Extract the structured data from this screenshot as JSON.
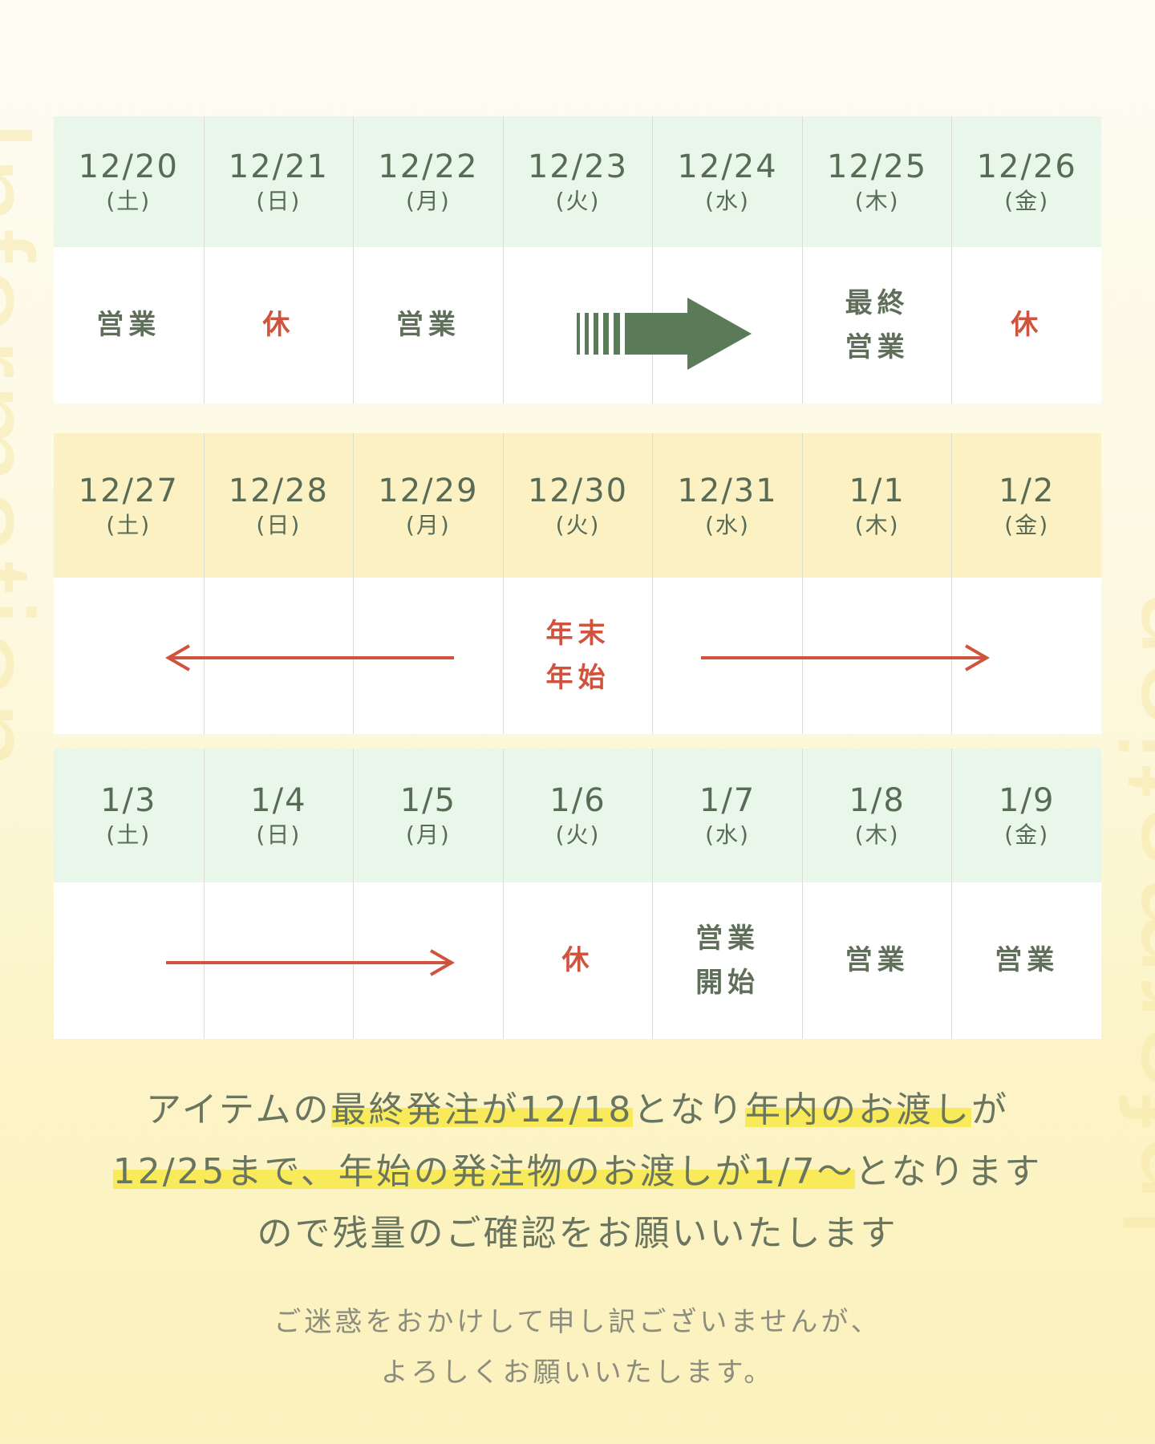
{
  "watermark": "Information",
  "colors": {
    "green_header": "#e9f7ea",
    "yellow_header": "#fcf1c2",
    "text": "#5f6f5a",
    "closed": "#d0533e",
    "arrow_green": "#5b7a58"
  },
  "weeks": [
    {
      "days": [
        {
          "date": "12/20",
          "dow": "(土)",
          "status": "営業"
        },
        {
          "date": "12/21",
          "dow": "(日)",
          "status": "休",
          "closed": true
        },
        {
          "date": "12/22",
          "dow": "(月)",
          "status": "営業"
        },
        {
          "date": "12/23",
          "dow": "(火)",
          "status": ""
        },
        {
          "date": "12/24",
          "dow": "(水)",
          "status": ""
        },
        {
          "date": "12/25",
          "dow": "(木)",
          "status": "最終\n営業"
        },
        {
          "date": "12/26",
          "dow": "(金)",
          "status": "休",
          "closed": true
        }
      ],
      "arrow": "green-right-arrow-icon"
    },
    {
      "days": [
        {
          "date": "12/27",
          "dow": "(土)",
          "status": ""
        },
        {
          "date": "12/28",
          "dow": "(日)",
          "status": ""
        },
        {
          "date": "12/29",
          "dow": "(月)",
          "status": ""
        },
        {
          "date": "12/30",
          "dow": "(火)",
          "status": "年末\n年始",
          "closed": true
        },
        {
          "date": "12/31",
          "dow": "(水)",
          "status": ""
        },
        {
          "date": "1/1",
          "dow": "(木)",
          "status": ""
        },
        {
          "date": "1/2",
          "dow": "(金)",
          "status": ""
        }
      ],
      "arrow": "red-double-arrow-icon"
    },
    {
      "days": [
        {
          "date": "1/3",
          "dow": "(土)",
          "status": ""
        },
        {
          "date": "1/4",
          "dow": "(日)",
          "status": ""
        },
        {
          "date": "1/5",
          "dow": "(月)",
          "status": ""
        },
        {
          "date": "1/6",
          "dow": "(火)",
          "status": "休",
          "closed": true
        },
        {
          "date": "1/7",
          "dow": "(水)",
          "status": "営業\n開始"
        },
        {
          "date": "1/8",
          "dow": "(木)",
          "status": "営業"
        },
        {
          "date": "1/9",
          "dow": "(金)",
          "status": "営業"
        }
      ],
      "arrow": "red-right-arrow-icon"
    }
  ],
  "message": {
    "line1": [
      "アイテムの",
      "最終発注が12/18",
      "となり",
      "年内のお渡し",
      "が"
    ],
    "line2": [
      "12/25まで、",
      "年始の発注物のお渡しが1/7～",
      "となります"
    ],
    "line3": "ので残量のご確認をお願いいたします"
  },
  "closing": {
    "line1": "ご迷惑をおかけして申し訳ございませんが、",
    "line2": "よろしくお願いいたします。"
  }
}
